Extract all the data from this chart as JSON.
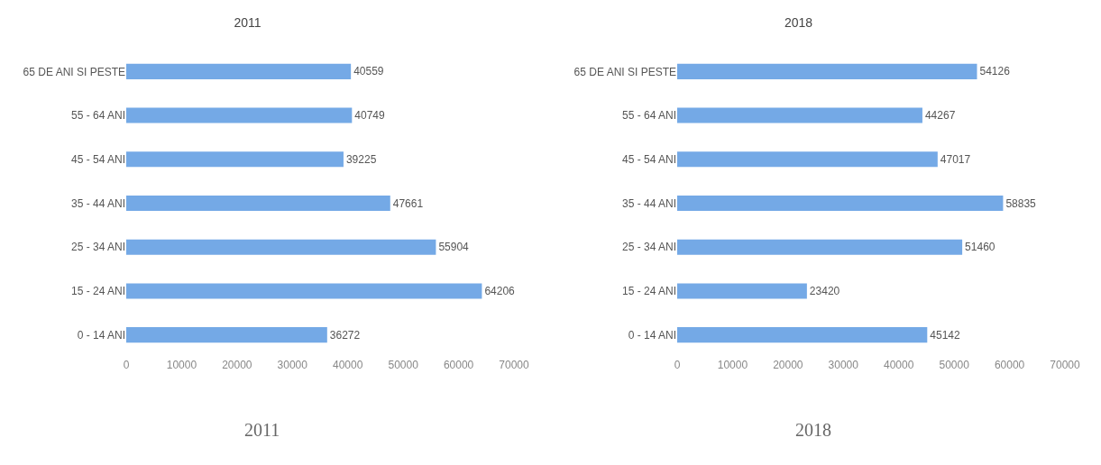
{
  "chart_data": [
    {
      "type": "bar",
      "orientation": "horizontal",
      "title": "2011",
      "categories": [
        "65 DE ANI SI PESTE",
        "55 - 64 ANI",
        "45 - 54 ANI",
        "35 - 44 ANI",
        "25 - 34 ANI",
        "15 - 24 ANI",
        "0 - 14 ANI"
      ],
      "values": [
        40559,
        40749,
        39225,
        47661,
        55904,
        64206,
        36272
      ],
      "color": "#74a9e6",
      "xlim": [
        0,
        70000
      ],
      "xticks": [
        0,
        10000,
        20000,
        30000,
        40000,
        50000,
        60000,
        70000
      ],
      "grid": false,
      "data_labels": true,
      "annotations": [
        "2011"
      ]
    },
    {
      "type": "bar",
      "orientation": "horizontal",
      "title": "2018",
      "categories": [
        "65 DE ANI SI PESTE",
        "55 - 64 ANI",
        "45 - 54 ANI",
        "35 - 44 ANI",
        "25 - 34 ANI",
        "15 - 24 ANI",
        "0 - 14 ANI"
      ],
      "values": [
        54126,
        44267,
        47017,
        58835,
        51460,
        23420,
        45142
      ],
      "color": "#74a9e6",
      "xlim": [
        0,
        70000
      ],
      "xticks": [
        0,
        10000,
        20000,
        30000,
        40000,
        50000,
        60000,
        70000
      ],
      "grid": false,
      "data_labels": true,
      "annotations": [
        "2018"
      ]
    }
  ]
}
